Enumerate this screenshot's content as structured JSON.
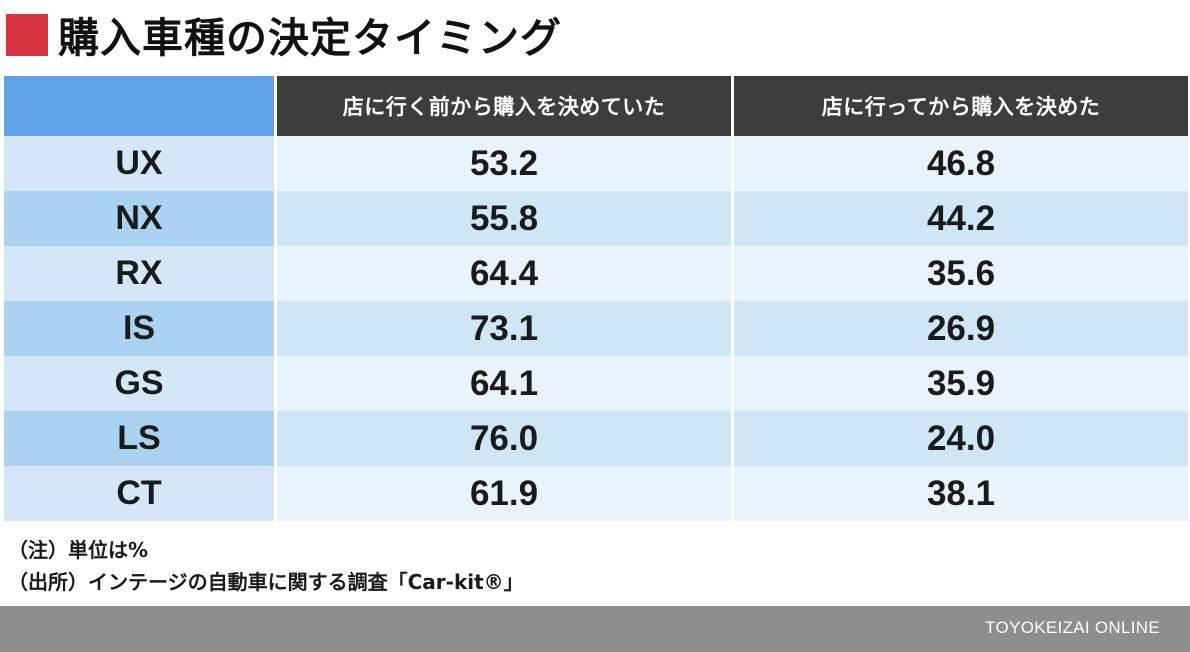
{
  "title": "購入車種の決定タイミング",
  "colors": {
    "title_mark": "#d8343f",
    "header_corner": "#5ea3e5",
    "header_bg": "#3d3d3d",
    "row_odd_label": "#d4e6f8",
    "row_odd_value": "#e8f3fd",
    "row_even_label": "#a9d2f3",
    "row_even_value": "#cfe6f7",
    "footer_bg": "#8e8e8e"
  },
  "chart_data": {
    "type": "table",
    "title": "購入車種の決定タイミング",
    "columns": [
      "",
      "店に行く前から購入を決めていた",
      "店に行ってから購入を決めた"
    ],
    "rows": [
      {
        "label": "UX",
        "values": [
          "53.2",
          "46.8"
        ]
      },
      {
        "label": "NX",
        "values": [
          "55.8",
          "44.2"
        ]
      },
      {
        "label": "RX",
        "values": [
          "64.4",
          "35.6"
        ]
      },
      {
        "label": "IS",
        "values": [
          "73.1",
          "26.9"
        ]
      },
      {
        "label": "GS",
        "values": [
          "64.1",
          "35.9"
        ]
      },
      {
        "label": "LS",
        "values": [
          "76.0",
          "24.0"
        ]
      },
      {
        "label": "CT",
        "values": [
          "61.9",
          "38.1"
        ]
      }
    ]
  },
  "notes": [
    "（注）単位は%",
    "（出所）インテージの自動車に関する調査「Car-kit®」"
  ],
  "footer": {
    "brand": "TOYOKEIZAI ONLINE"
  }
}
